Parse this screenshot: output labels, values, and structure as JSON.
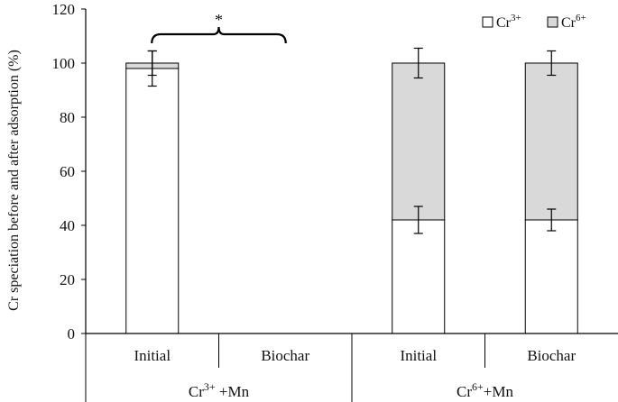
{
  "chart_data": {
    "type": "bar",
    "stacked": true,
    "ylabel": "Cr speciation before and after adsorption (%)",
    "ylim": [
      0,
      120
    ],
    "yticks": [
      0,
      20,
      40,
      60,
      80,
      100,
      120
    ],
    "ytick_labels": [
      "0",
      "20",
      "40",
      "60",
      "80",
      "100",
      "120"
    ],
    "grid": false,
    "legend_position": "top-right",
    "groups": [
      {
        "label_base": "Cr",
        "label_sup": "3+",
        "label_tail": " +Mn",
        "categories": [
          "Initial",
          "Biochar"
        ]
      },
      {
        "label_base": "Cr",
        "label_sup": "6+",
        "label_tail": "+Mn",
        "categories": [
          "Initial",
          "Biochar"
        ]
      }
    ],
    "series": [
      {
        "legend_base": "Cr",
        "legend_sup": "3+",
        "color": "#ffffff",
        "values": [
          98,
          null,
          42,
          42
        ],
        "errors": [
          6.5,
          null,
          5.0,
          4.0
        ]
      },
      {
        "legend_base": "Cr",
        "legend_sup": "6+",
        "color": "#d9d9d9",
        "values": [
          2,
          null,
          58,
          58
        ],
        "errors": [
          4.5,
          null,
          5.5,
          4.5
        ]
      }
    ],
    "significance": {
      "from_bar": 0,
      "to_bar": 1,
      "symbol": "*"
    }
  }
}
